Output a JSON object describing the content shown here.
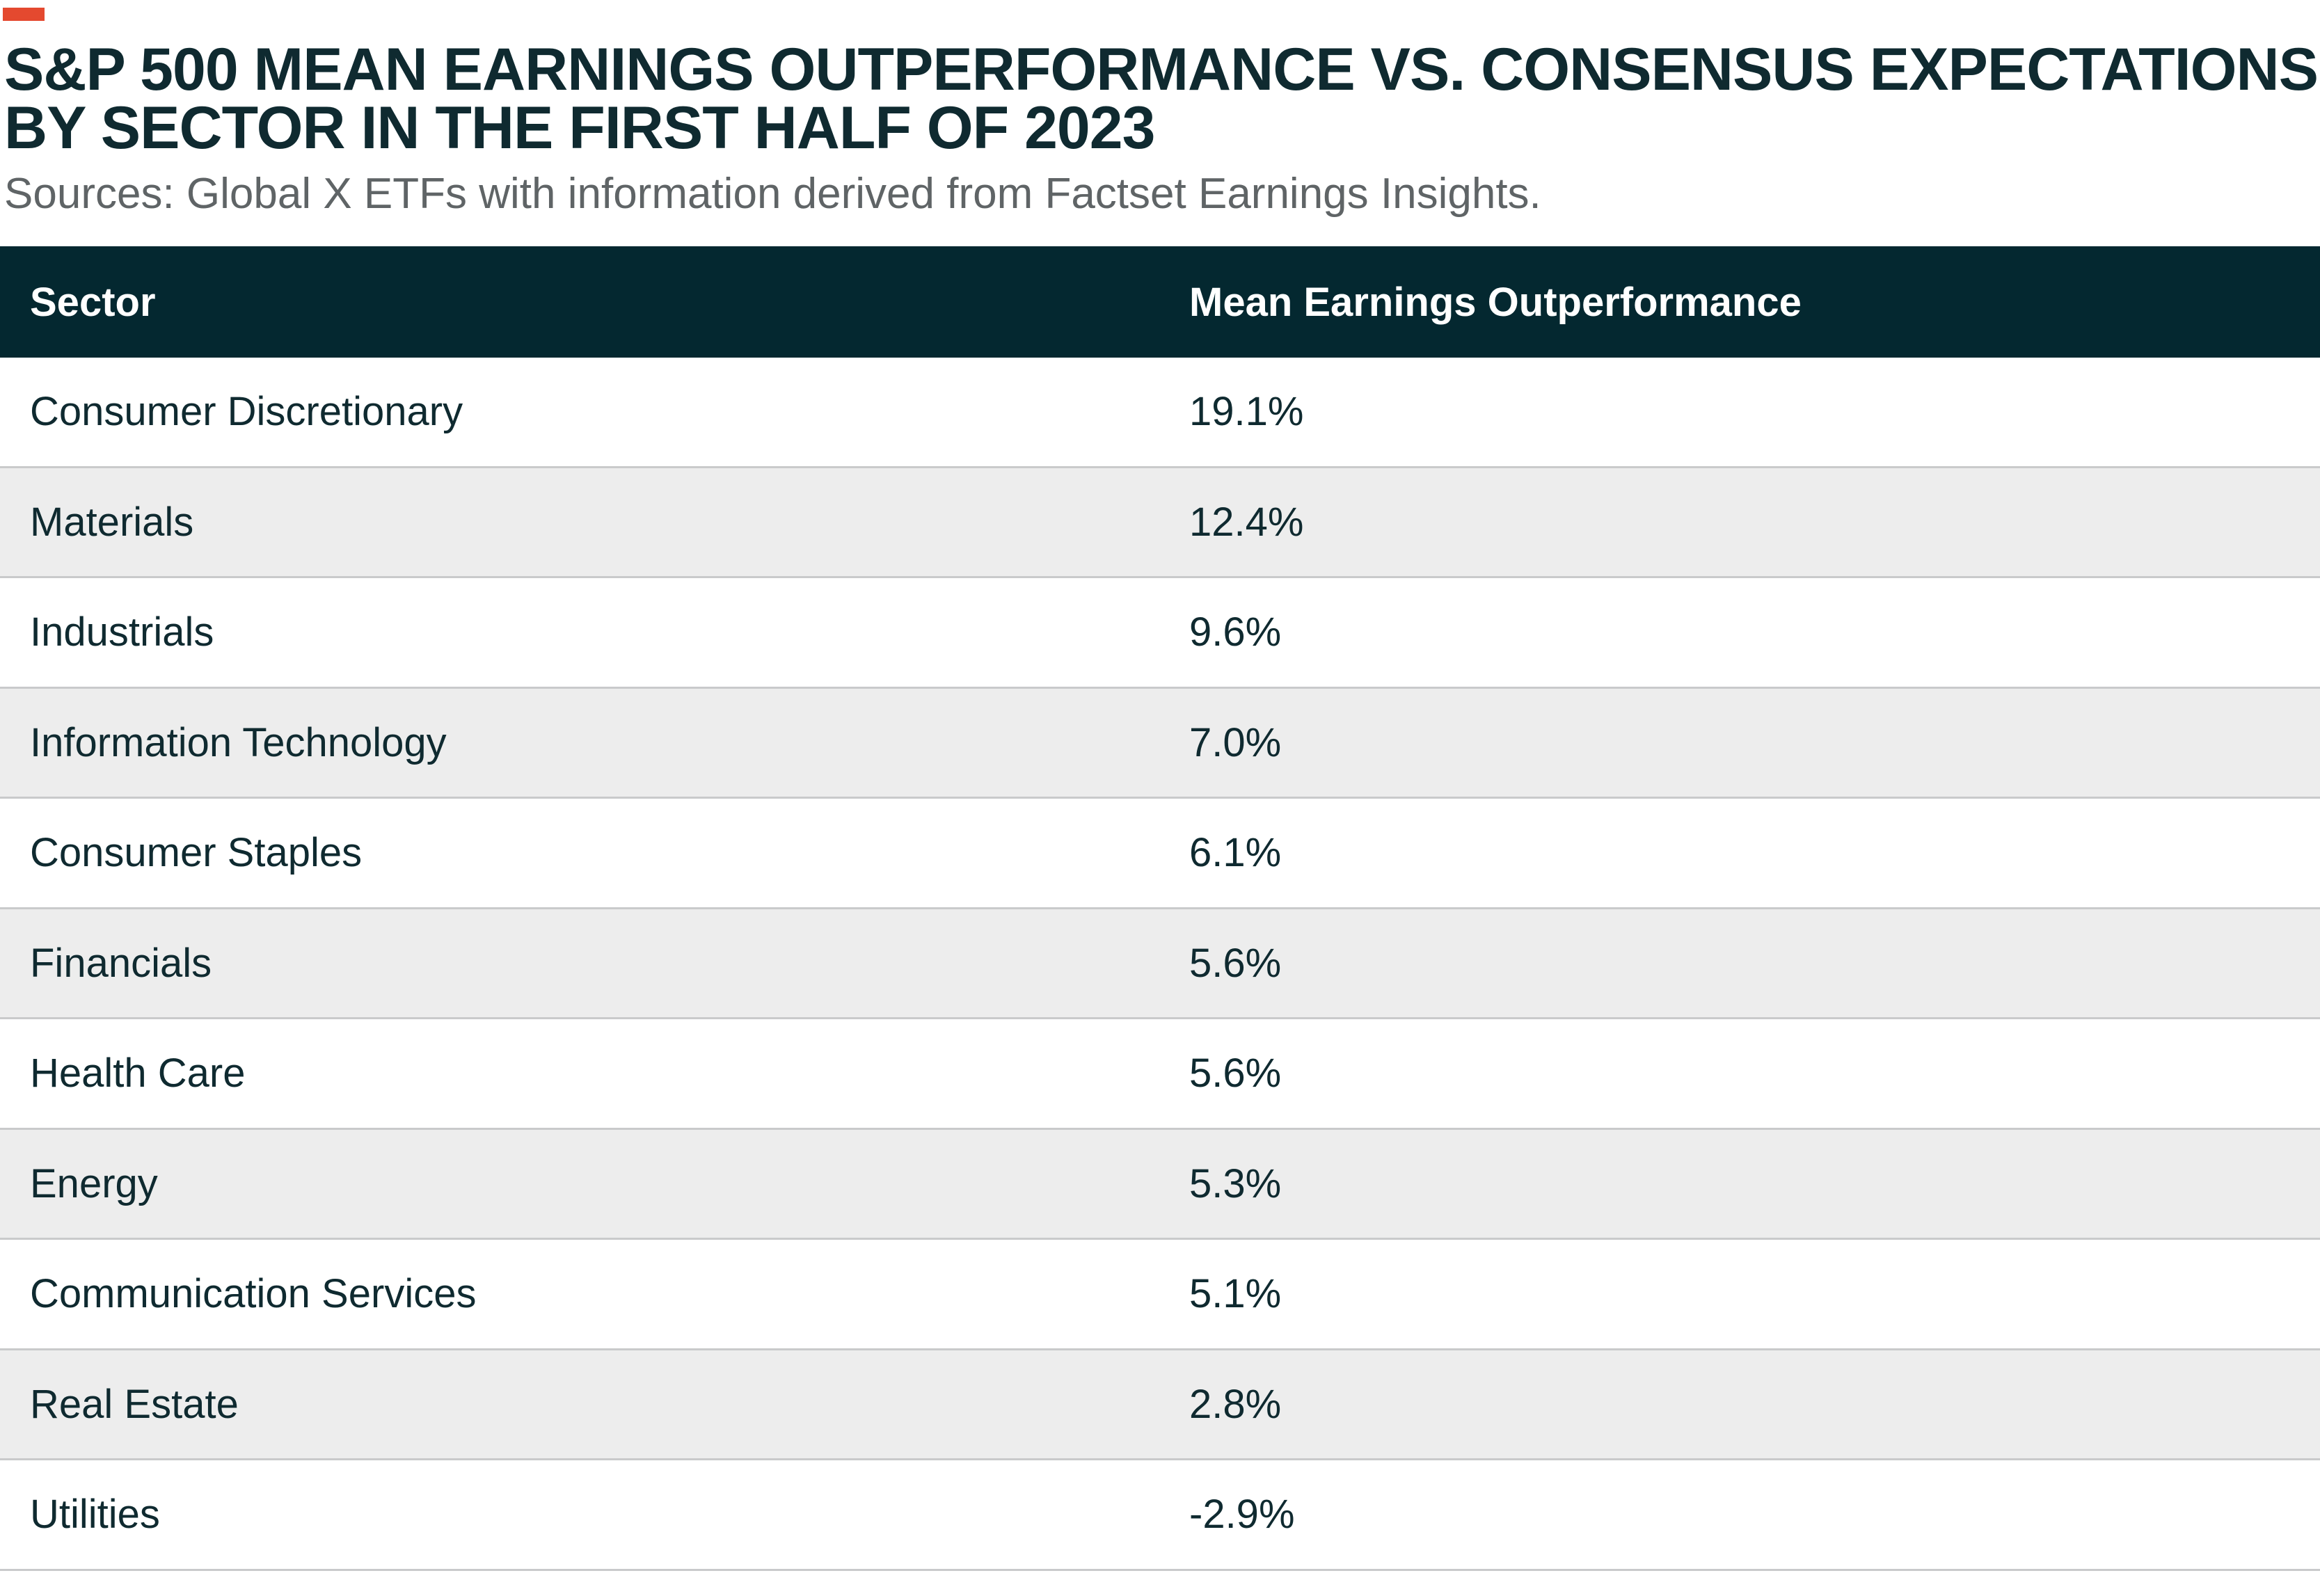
{
  "colors": {
    "accent": "#e4492f",
    "header_bg": "#042830",
    "title_text": "#0f2a30",
    "subtitle_text": "#5f6466",
    "row_alt_bg": "#ededed",
    "row_bg": "#ffffff"
  },
  "chart_data": {
    "type": "table",
    "title_lines": [
      "S&P 500 MEAN EARNINGS OUTPERFORMANCE VS. CONSENSUS EXPECTATIONS",
      "BY SECTOR IN THE FIRST HALF OF 2023"
    ],
    "subtitle": "Sources: Global X ETFs with information derived from Factset Earnings Insights.",
    "columns": [
      "Sector",
      "Mean Earnings Outperformance"
    ],
    "rows": [
      {
        "sector": "Consumer Discretionary",
        "value": "19.1%"
      },
      {
        "sector": "Materials",
        "value": "12.4%"
      },
      {
        "sector": "Industrials",
        "value": "9.6%"
      },
      {
        "sector": "Information Technology",
        "value": "7.0%"
      },
      {
        "sector": "Consumer Staples",
        "value": "6.1%"
      },
      {
        "sector": "Financials",
        "value": "5.6%"
      },
      {
        "sector": "Health Care",
        "value": "5.6%"
      },
      {
        "sector": "Energy",
        "value": "5.3%"
      },
      {
        "sector": "Communication Services",
        "value": "5.1%"
      },
      {
        "sector": "Real Estate",
        "value": "2.8%"
      },
      {
        "sector": "Utilities",
        "value": "-2.9%"
      }
    ]
  }
}
